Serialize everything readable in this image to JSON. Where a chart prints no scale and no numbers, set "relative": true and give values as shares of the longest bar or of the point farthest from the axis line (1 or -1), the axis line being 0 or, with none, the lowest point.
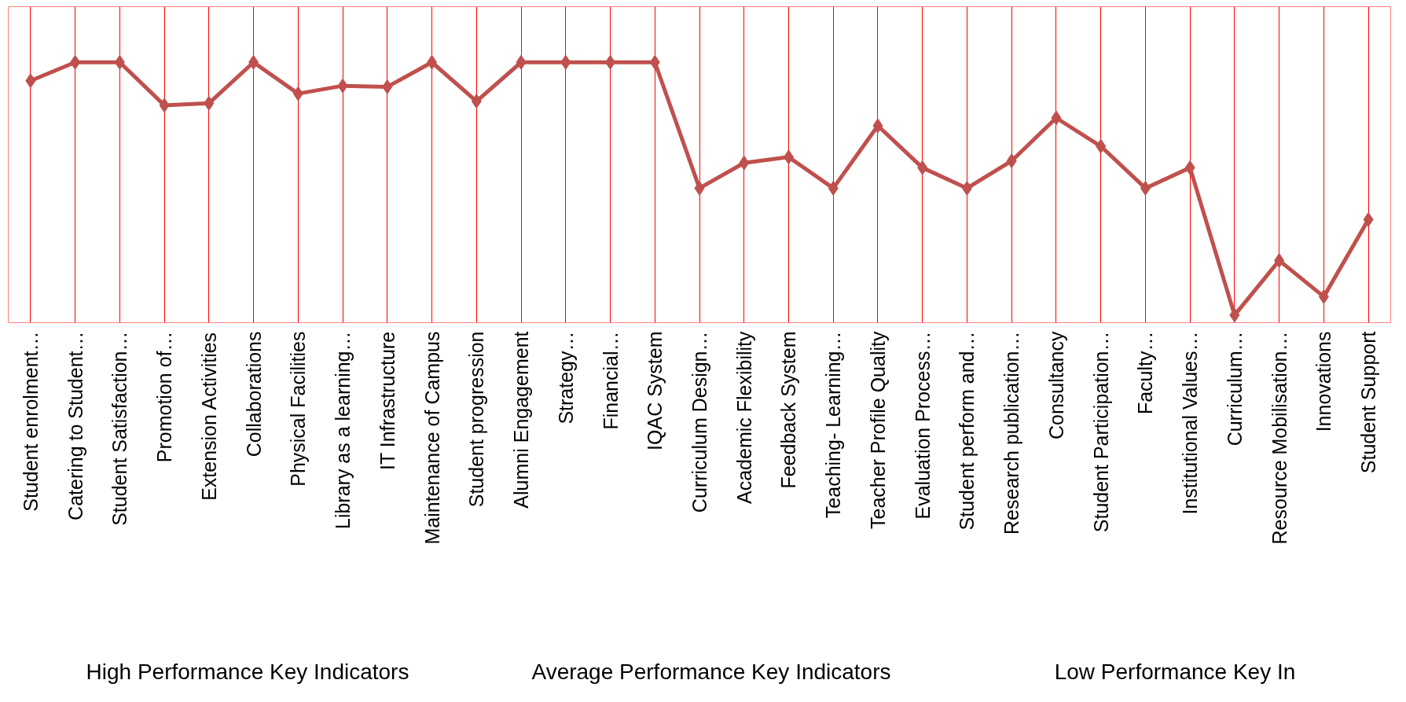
{
  "chart_data": {
    "type": "line",
    "relative": true,
    "color": "#c0504d",
    "marker": "diamond",
    "grid": "x",
    "categories": [
      "Student enrolment…",
      "Catering to Student…",
      "Student Satisfaction…",
      "Promotion of…",
      "Extension Activities",
      "Collaborations",
      "Physical Facilities",
      "Library as a learning…",
      "IT Infrastructure",
      "Maintenance of Campus",
      "Student progression",
      "Alumni Engagement",
      "Strategy…",
      "Financial…",
      "IQAC System",
      "Curriculum Design…",
      "Academic Flexibility",
      "Feedback System",
      "Teaching- Learning…",
      "Teacher Profile Quality",
      "Evaluation Process…",
      "Student perform and…",
      "Research publication…",
      "Consultancy",
      "Student Participation…",
      "Faculty…",
      "Institutional Values…",
      "Curriculum…",
      "Resource Mobilisation…",
      "Innovations",
      "Student Support"
    ],
    "values": [
      0.927,
      1,
      1,
      0.83,
      0.838,
      1,
      0.876,
      0.907,
      0.903,
      1,
      0.846,
      1,
      1,
      1,
      1,
      0.502,
      0.602,
      0.625,
      0.502,
      0.749,
      0.583,
      0.502,
      0.61,
      0.78,
      0.668,
      0.502,
      0.583,
      0,
      0.216,
      0.073,
      0.378
    ],
    "annotations": [
      "High Performance Key Indicators",
      "Average Performance Key Indicators",
      "Low Performance Key In"
    ]
  }
}
